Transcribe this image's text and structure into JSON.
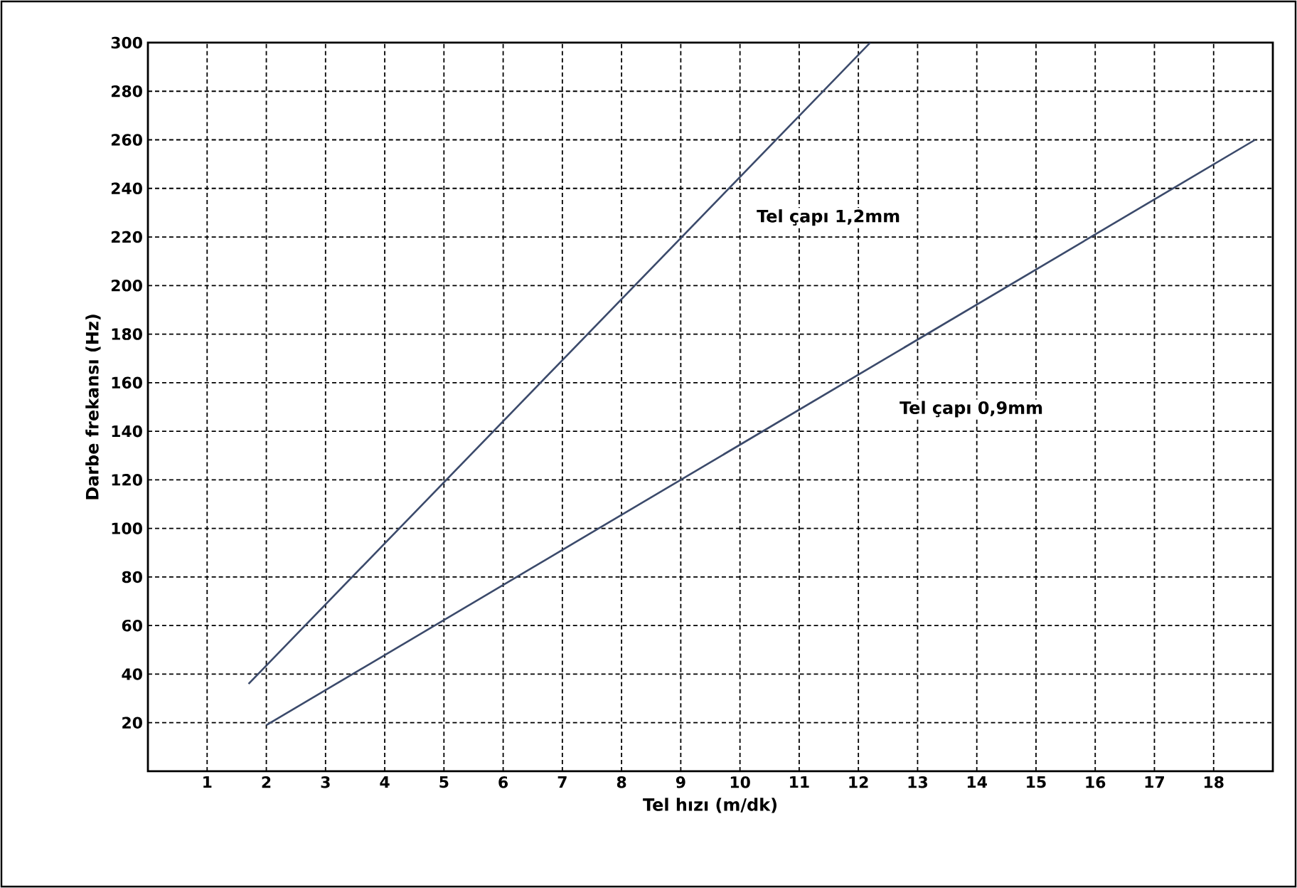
{
  "chart_data": {
    "type": "line",
    "xlabel": "Tel hızı (m/dk)",
    "ylabel": "Darbe frekansı (Hz)",
    "series": [
      {
        "x": [
          1.7,
          12.2
        ],
        "values": [
          36,
          300
        ],
        "color": "#3b4a6b"
      },
      {
        "x": [
          2,
          18.7
        ],
        "values": [
          19,
          260
        ],
        "color": "#3b4a6b"
      }
    ],
    "annotations": [
      "Tel çapı 1,2mm",
      "Tel çapı 0,9mm"
    ],
    "xlim": [
      0,
      19
    ],
    "xticks": [
      1,
      2,
      3,
      4,
      5,
      6,
      7,
      8,
      9,
      10,
      11,
      12,
      13,
      14,
      15,
      16,
      17,
      18
    ],
    "ylim": [
      0,
      300
    ],
    "yticks": [
      20,
      40,
      60,
      80,
      100,
      120,
      140,
      160,
      180,
      200,
      220,
      240,
      260,
      280,
      300
    ],
    "grid": true,
    "marker": "none",
    "line_style": "solid"
  }
}
